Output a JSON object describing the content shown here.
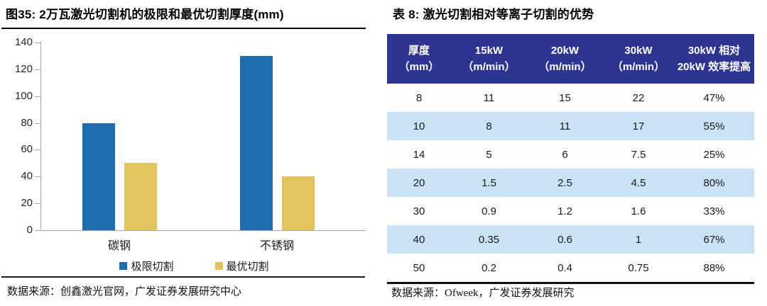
{
  "left_panel": {
    "title": "图35:  2万瓦激光切割机的极限和最优切割厚度(mm)",
    "source": "数据来源：创鑫激光官网，广发证券发展研究中心"
  },
  "right_panel": {
    "title": "表 8:  激光切割相对等离子切割的优势",
    "source": "数据来源：Ofweek，广发证券发展研究"
  },
  "chart_data": [
    {
      "type": "bar",
      "title": "2万瓦激光切割机的极限和最优切割厚度(mm)",
      "categories": [
        "碳钢",
        "不锈钢"
      ],
      "series": [
        {
          "name": "极限切割",
          "color": "#1F6DAD",
          "values": [
            80,
            130
          ]
        },
        {
          "name": "最优切割",
          "color": "#E2C45F",
          "values": [
            50,
            40
          ]
        }
      ],
      "xlabel": "",
      "ylabel": "",
      "ylim": [
        0,
        140
      ],
      "yticks": [
        0,
        20,
        40,
        60,
        80,
        100,
        120,
        140
      ],
      "grid": false,
      "legend_position": "bottom"
    },
    {
      "type": "table",
      "title": "激光切割相对等离子切割的优势",
      "header_lines": [
        [
          "厚度",
          "（mm）"
        ],
        [
          "15kW",
          "（m/min）"
        ],
        [
          "20kW",
          "（m/min）"
        ],
        [
          "30kW",
          "（m/min）"
        ],
        [
          "30kW 相对",
          "20kW 效率提高"
        ]
      ],
      "rows": [
        [
          "8",
          "11",
          "15",
          "22",
          "47%"
        ],
        [
          "10",
          "8",
          "11",
          "17",
          "55%"
        ],
        [
          "14",
          "5",
          "6",
          "7.5",
          "25%"
        ],
        [
          "20",
          "1.5",
          "2.5",
          "4.5",
          "80%"
        ],
        [
          "30",
          "0.9",
          "1.2",
          "1.6",
          "33%"
        ],
        [
          "40",
          "0.35",
          "0.6",
          "1",
          "67%"
        ],
        [
          "50",
          "0.2",
          "0.4",
          "0.75",
          "88%"
        ]
      ]
    }
  ],
  "colors": {
    "bar_limit": "#1F6DAD",
    "bar_optimal": "#E2C45F",
    "table_header_bg": "#2E3591",
    "table_header_text": "#FFFFFF",
    "table_alt_row_bg": "#C9E3F5",
    "axis": "#A6A6A6",
    "rule": "#000000"
  }
}
